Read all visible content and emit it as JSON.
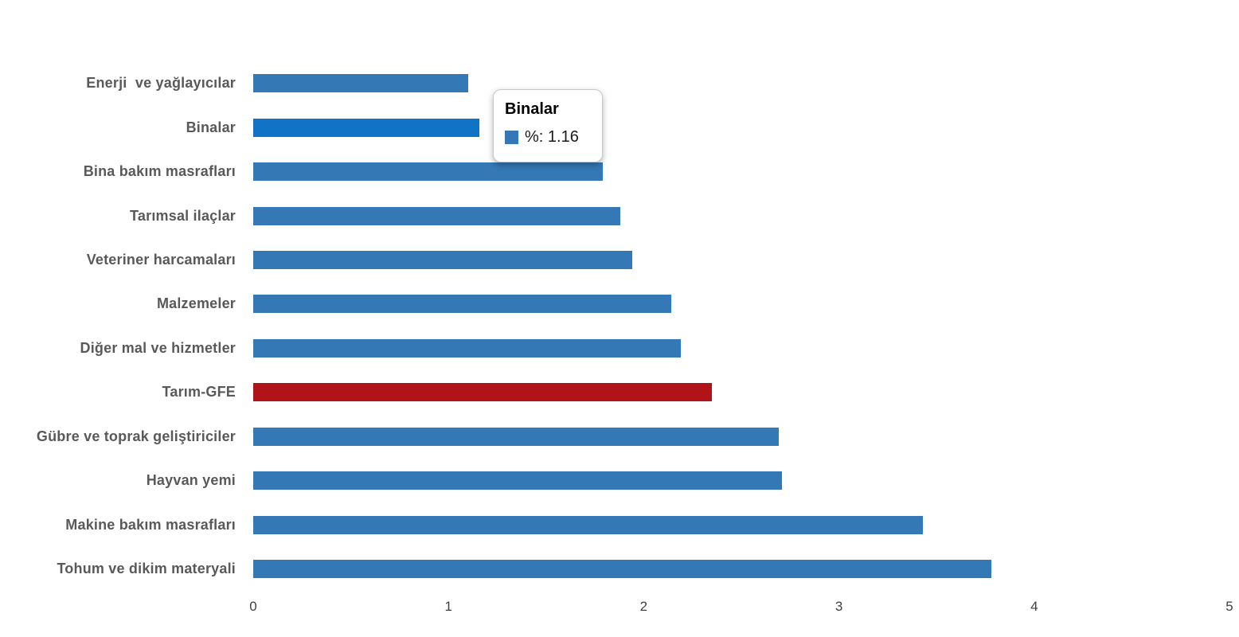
{
  "chart_data": {
    "type": "bar",
    "orientation": "horizontal",
    "title": "",
    "categories": [
      "Enerji  ve yağlayıcılar",
      "Binalar",
      "Bina bakım masrafları",
      "Tarımsal ilaçlar",
      "Veteriner harcamaları",
      "Malzemeler",
      "Diğer mal ve hizmetler",
      "Tarım-GFE",
      "Gübre ve toprak geliştiriciler",
      "Hayvan yemi",
      "Makine bakım masrafları",
      "Tohum ve dikim materyali"
    ],
    "values": [
      1.1,
      1.16,
      1.79,
      1.88,
      1.94,
      2.14,
      2.19,
      2.35,
      2.69,
      2.71,
      3.43,
      3.78
    ],
    "series_name": "%",
    "bar_color": "#3478B6",
    "highlighted_category": "Binalar",
    "highlight_color": "#1173C6",
    "emphasis_category": "Tarım-GFE",
    "emphasis_color": "#B01318",
    "xlabel": "",
    "ylabel": "",
    "xlim": [
      0,
      5
    ],
    "x_ticks": [
      "0",
      "1",
      "2",
      "3",
      "4",
      "5"
    ],
    "grid": false,
    "legend": false
  },
  "tooltip": {
    "title": "Binalar",
    "text": "%: 1.16",
    "swatch_color": "#3478B6"
  },
  "colors": {
    "category_label": "#595959",
    "tick_label": "#404040",
    "background": "#FFFFFF"
  }
}
